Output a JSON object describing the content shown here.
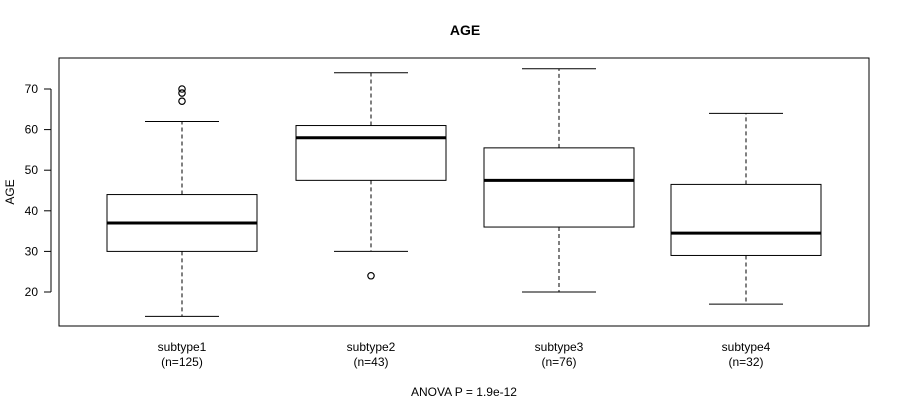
{
  "chart_data": {
    "type": "boxplot",
    "title": "AGE",
    "ylabel": "AGE",
    "xlabel": "ANOVA P = 1.9e-12",
    "ylim": [
      12,
      77
    ],
    "yticks": [
      20,
      30,
      40,
      50,
      60,
      70
    ],
    "categories": [
      {
        "name": "subtype1",
        "n_label": "(n=125)"
      },
      {
        "name": "subtype2",
        "n_label": "(n=43)"
      },
      {
        "name": "subtype3",
        "n_label": "(n=76)"
      },
      {
        "name": "subtype4",
        "n_label": "(n=32)"
      }
    ],
    "boxes": [
      {
        "whisker_low": 14,
        "q1": 30,
        "median": 37,
        "q3": 44,
        "whisker_high": 62,
        "outliers": [
          67,
          69,
          70
        ]
      },
      {
        "whisker_low": 30,
        "q1": 47.5,
        "median": 58,
        "q3": 61,
        "whisker_high": 74,
        "outliers": [
          24
        ]
      },
      {
        "whisker_low": 20,
        "q1": 36,
        "median": 47.5,
        "q3": 55.5,
        "whisker_high": 75,
        "outliers": []
      },
      {
        "whisker_low": 17,
        "q1": 29,
        "median": 34.5,
        "q3": 46.5,
        "whisker_high": 64,
        "outliers": []
      }
    ],
    "grid": false,
    "legend": "none"
  }
}
